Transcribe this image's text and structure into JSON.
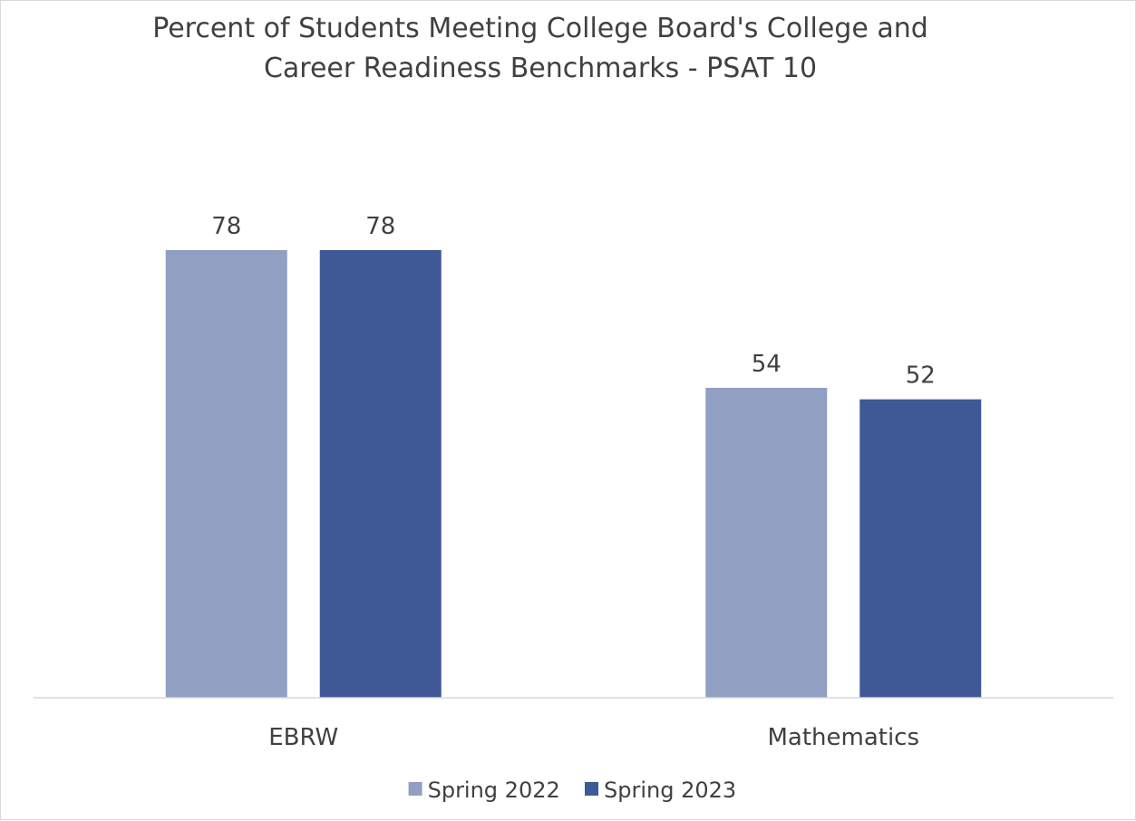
{
  "chart_data": {
    "type": "bar",
    "title_lines": [
      "Percent of Students Meeting College Board's College and",
      "Career Readiness Benchmarks - PSAT 10"
    ],
    "categories": [
      "EBRW",
      "Mathematics"
    ],
    "series": [
      {
        "name": "Spring 2022",
        "values": [
          78,
          54
        ],
        "color": "#919FC3"
      },
      {
        "name": "Spring 2023",
        "values": [
          78,
          52
        ],
        "color": "#3F5997"
      }
    ],
    "ylim": [
      0,
      100
    ],
    "data_labels": true,
    "grid": false,
    "legend_position": "bottom"
  }
}
